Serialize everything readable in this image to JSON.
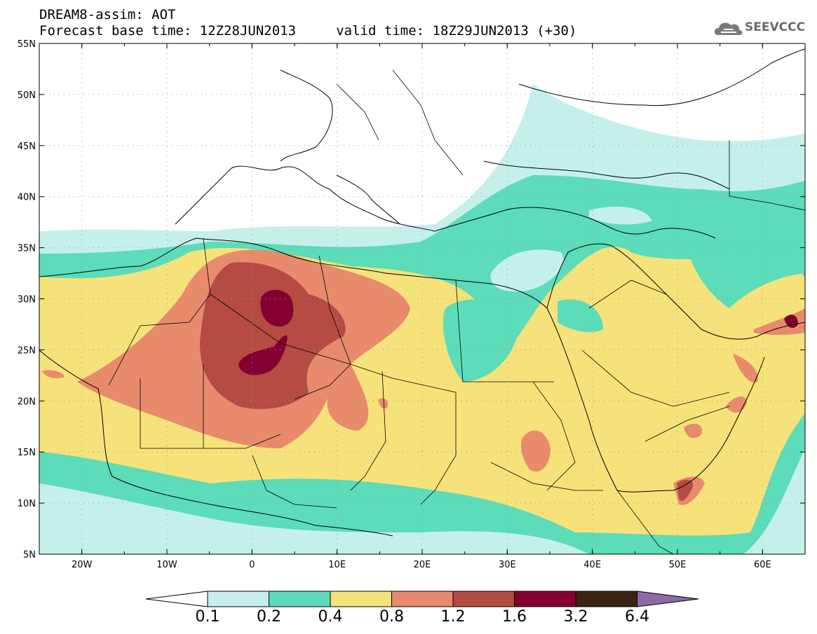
{
  "header": {
    "title_line1": "DREAM8-assim: AOT",
    "title_line2": "Forecast base time: 12Z28JUN2013     valid time: 18Z29JUN2013 (+30)",
    "logo_text": "SEEVCCC"
  },
  "map": {
    "variable": "AOT",
    "lon_range": [
      -25,
      65
    ],
    "lat_range": [
      5,
      55
    ],
    "lon_ticks": [
      "20W",
      "10W",
      "0",
      "10E",
      "20E",
      "30E",
      "40E",
      "50E",
      "60E"
    ],
    "lat_ticks": [
      "55N",
      "50N",
      "45N",
      "40N",
      "35N",
      "30N",
      "25N",
      "20N",
      "15N",
      "10N",
      "5N"
    ],
    "grid": true
  },
  "colorbar": {
    "labels": [
      "0.1",
      "0.2",
      "0.4",
      "0.8",
      "1.2",
      "1.6",
      "3.2",
      "6.4"
    ],
    "colors": [
      "#c5f0ea",
      "#5cdcb8",
      "#f6e27a",
      "#e88a6c",
      "#b44c44",
      "#840030",
      "#3c2414",
      "#8c6aa8"
    ]
  }
}
